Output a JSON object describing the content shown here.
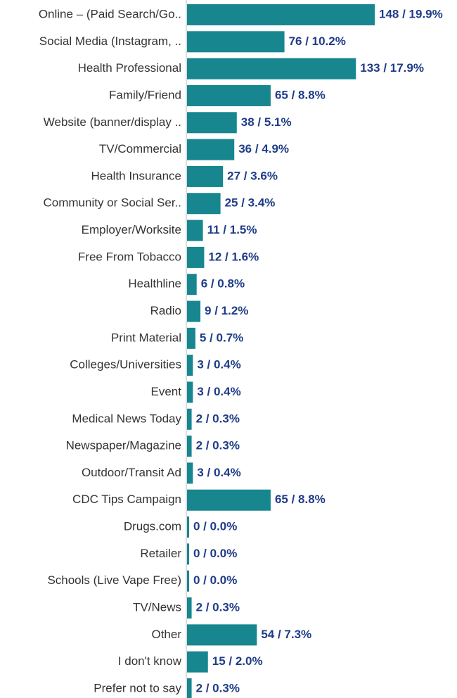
{
  "chart_data": {
    "type": "bar",
    "orientation": "horizontal",
    "color": "#17868f",
    "categories": [
      "Online – (Paid Search/Go..",
      "Social Media (Instagram, ..",
      "Health Professional",
      "Family/Friend",
      "Website (banner/display ..",
      "TV/Commercial",
      "Health Insurance",
      "Community or Social Ser..",
      "Employer/Worksite",
      "Free From Tobacco",
      "Healthline",
      "Radio",
      "Print Material",
      "Colleges/Universities",
      "Event",
      "Medical News Today",
      "Newspaper/Magazine",
      "Outdoor/Transit Ad",
      "CDC Tips Campaign",
      "Drugs.com",
      "Retailer",
      "Schools (Live Vape Free)",
      "TV/News",
      "Other",
      "I don't know",
      "Prefer not to say"
    ],
    "values": [
      148,
      76,
      133,
      65,
      38,
      36,
      27,
      25,
      11,
      12,
      6,
      9,
      5,
      3,
      3,
      2,
      2,
      3,
      65,
      0,
      0,
      0,
      2,
      54,
      15,
      2
    ],
    "value_labels": [
      "148 / 19.9%",
      "76 / 10.2%",
      "133 / 17.9%",
      "65 / 8.8%",
      "38 / 5.1%",
      "36 / 4.9%",
      "27 / 3.6%",
      "25 / 3.4%",
      "11 / 1.5%",
      "12 / 1.6%",
      "6 / 0.8%",
      "9 / 1.2%",
      "5 / 0.7%",
      "3 / 0.4%",
      "3 / 0.4%",
      "2 / 0.3%",
      "2 / 0.3%",
      "3 / 0.4%",
      "65 / 8.8%",
      "0 / 0.0%",
      "0 / 0.0%",
      "0 / 0.0%",
      "2 / 0.3%",
      "54 / 7.3%",
      "15 / 2.0%",
      "2 / 0.3%"
    ]
  }
}
